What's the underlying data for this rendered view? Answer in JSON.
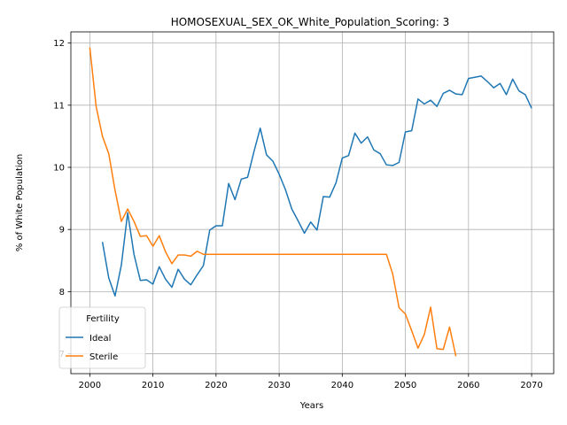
{
  "chart_data": {
    "type": "line",
    "title": "HOMOSEXUAL_SEX_OK_White_Population_Scoring: 3",
    "xlabel": "Years",
    "ylabel": "% of White Population",
    "xlim": [
      1997.0,
      2073.5
    ],
    "ylim": [
      6.68,
      12.18
    ],
    "xticks": [
      2000,
      2010,
      2020,
      2030,
      2040,
      2050,
      2060,
      2070
    ],
    "yticks": [
      7,
      8,
      9,
      10,
      11,
      12
    ],
    "grid": true,
    "legend": {
      "title": "Fertility",
      "placement": "lower-left"
    },
    "series": [
      {
        "name": "Ideal",
        "color": "#1f77b4",
        "x": [
          2002,
          2003,
          2004,
          2005,
          2006,
          2007,
          2008,
          2009,
          2010,
          2011,
          2012,
          2013,
          2014,
          2015,
          2016,
          2017,
          2018,
          2019,
          2020,
          2021,
          2022,
          2023,
          2024,
          2025,
          2026,
          2027,
          2028,
          2029,
          2030,
          2031,
          2032,
          2033,
          2034,
          2035,
          2036,
          2037,
          2038,
          2039,
          2040,
          2041,
          2042,
          2043,
          2044,
          2045,
          2046,
          2047,
          2048,
          2049,
          2050,
          2051,
          2052,
          2053,
          2054,
          2055,
          2056,
          2057,
          2058,
          2059,
          2060,
          2061,
          2062,
          2063,
          2064,
          2065,
          2066,
          2067,
          2068,
          2069,
          2070
        ],
        "y": [
          8.8,
          8.22,
          7.93,
          8.43,
          9.27,
          8.6,
          8.18,
          8.19,
          8.12,
          8.4,
          8.2,
          8.07,
          8.36,
          8.2,
          8.11,
          8.27,
          8.42,
          8.99,
          9.06,
          9.06,
          9.74,
          9.48,
          9.81,
          9.84,
          10.25,
          10.63,
          10.2,
          10.1,
          9.89,
          9.64,
          9.33,
          9.14,
          8.94,
          9.12,
          8.99,
          9.53,
          9.52,
          9.75,
          10.15,
          10.19,
          10.55,
          10.39,
          10.49,
          10.28,
          10.22,
          10.04,
          10.03,
          10.08,
          10.57,
          10.59,
          11.1,
          11.02,
          11.08,
          10.98,
          11.19,
          11.24,
          11.18,
          11.17,
          11.43,
          11.45,
          11.47,
          11.38,
          11.28,
          11.35,
          11.17,
          11.42,
          11.23,
          11.17,
          10.95
        ]
      },
      {
        "name": "Sterile",
        "color": "#ff7f0e",
        "x": [
          2000,
          2001,
          2002,
          2003,
          2004,
          2005,
          2006,
          2007,
          2008,
          2009,
          2010,
          2011,
          2012,
          2013,
          2014,
          2015,
          2016,
          2017,
          2018,
          2019,
          2020,
          2021,
          2022,
          2023,
          2024,
          2025,
          2026,
          2027,
          2028,
          2029,
          2030,
          2031,
          2032,
          2033,
          2034,
          2035,
          2036,
          2037,
          2038,
          2039,
          2040,
          2041,
          2042,
          2043,
          2044,
          2045,
          2046,
          2047,
          2048,
          2049,
          2050,
          2051,
          2052,
          2053,
          2054,
          2055,
          2056,
          2057,
          2058
        ],
        "y": [
          11.93,
          10.98,
          10.5,
          10.22,
          9.63,
          9.13,
          9.33,
          9.13,
          8.89,
          8.9,
          8.73,
          8.9,
          8.64,
          8.45,
          8.59,
          8.59,
          8.57,
          8.65,
          8.6,
          8.6,
          8.6,
          8.6,
          8.6,
          8.6,
          8.6,
          8.6,
          8.6,
          8.6,
          8.6,
          8.6,
          8.6,
          8.6,
          8.6,
          8.6,
          8.6,
          8.6,
          8.6,
          8.6,
          8.6,
          8.6,
          8.6,
          8.6,
          8.6,
          8.6,
          8.6,
          8.6,
          8.6,
          8.6,
          8.28,
          7.74,
          7.64,
          7.37,
          7.09,
          7.31,
          7.75,
          7.08,
          7.07,
          7.43,
          6.96
        ]
      }
    ]
  }
}
